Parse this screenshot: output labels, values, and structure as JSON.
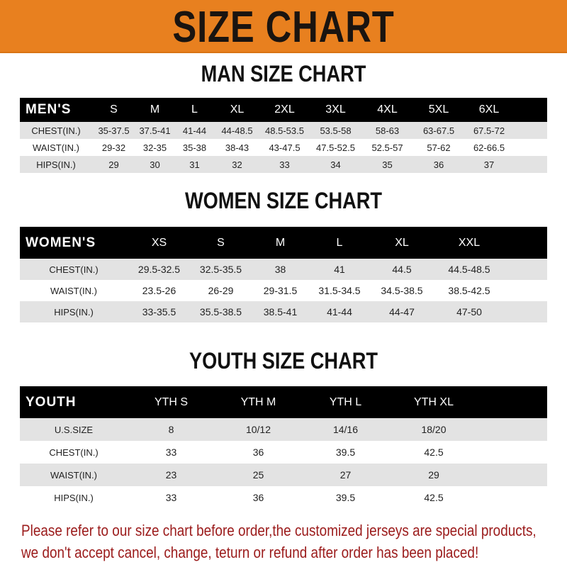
{
  "title": "SIZE CHART",
  "colors": {
    "banner": "#e8801f",
    "header_row": "#000000",
    "stripe": "#e3e3e3",
    "notice": "#9b1b1b"
  },
  "men": {
    "title": "MAN SIZE CHART",
    "header": [
      "MEN'S",
      "S",
      "M",
      "L",
      "XL",
      "2XL",
      "3XL",
      "4XL",
      "5XL",
      "6XL"
    ],
    "rows": [
      {
        "label": "CHEST(IN.)",
        "values": [
          "35-37.5",
          "37.5-41",
          "41-44",
          "44-48.5",
          "48.5-53.5",
          "53.5-58",
          "58-63",
          "63-67.5",
          "67.5-72"
        ]
      },
      {
        "label": "WAIST(IN.)",
        "values": [
          "29-32",
          "32-35",
          "35-38",
          "38-43",
          "43-47.5",
          "47.5-52.5",
          "52.5-57",
          "57-62",
          "62-66.5"
        ]
      },
      {
        "label": "HIPS(IN.)",
        "values": [
          "29",
          "30",
          "31",
          "32",
          "33",
          "34",
          "35",
          "36",
          "37"
        ]
      }
    ]
  },
  "women": {
    "title": "WOMEN SIZE CHART",
    "header": [
      "WOMEN'S",
      "XS",
      "S",
      "M",
      "L",
      "XL",
      "XXL"
    ],
    "rows": [
      {
        "label": "CHEST(IN.)",
        "values": [
          "29.5-32.5",
          "32.5-35.5",
          "38",
          "41",
          "44.5",
          "44.5-48.5"
        ]
      },
      {
        "label": "WAIST(IN.)",
        "values": [
          "23.5-26",
          "26-29",
          "29-31.5",
          "31.5-34.5",
          "34.5-38.5",
          "38.5-42.5"
        ]
      },
      {
        "label": "HIPS(IN.)",
        "values": [
          "33-35.5",
          "35.5-38.5",
          "38.5-41",
          "41-44",
          "44-47",
          "47-50"
        ]
      }
    ]
  },
  "youth": {
    "title": "YOUTH SIZE CHART",
    "header": [
      "YOUTH",
      "YTH S",
      "YTH M",
      "YTH L",
      "YTH XL"
    ],
    "rows": [
      {
        "label": "U.S.SIZE",
        "values": [
          "8",
          "10/12",
          "14/16",
          "18/20"
        ]
      },
      {
        "label": "CHEST(IN.)",
        "values": [
          "33",
          "36",
          "39.5",
          "42.5"
        ]
      },
      {
        "label": "WAIST(IN.)",
        "values": [
          "23",
          "25",
          "27",
          "29"
        ]
      },
      {
        "label": "HIPS(IN.)",
        "values": [
          "33",
          "36",
          "39.5",
          "42.5"
        ]
      }
    ]
  },
  "notice": {
    "line1": "Please refer to our size chart before order,the customized jerseys are special products,",
    "line2": "we don't accept cancel, change, teturn or refund after order has been placed!"
  }
}
